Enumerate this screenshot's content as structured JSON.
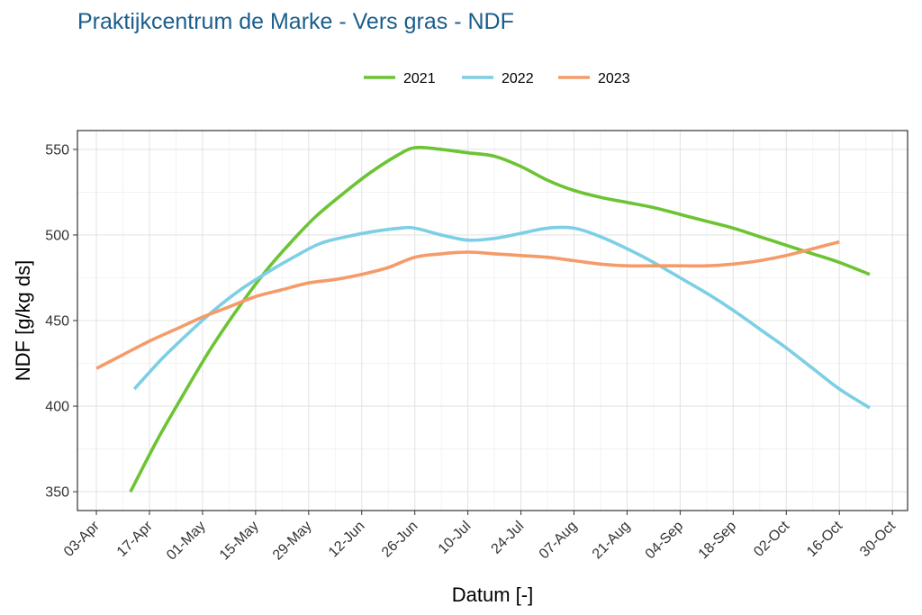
{
  "chart_data": {
    "type": "line",
    "title": "Praktijkcentrum de Marke - Vers gras - NDF",
    "xlabel": "Datum [-]",
    "ylabel": "NDF [g/kg ds]",
    "x_tick_labels": [
      "03-Apr",
      "17-Apr",
      "01-May",
      "15-May",
      "29-May",
      "12-Jun",
      "26-Jun",
      "10-Jul",
      "24-Jul",
      "07-Aug",
      "21-Aug",
      "04-Sep",
      "18-Sep",
      "02-Oct",
      "16-Oct",
      "30-Oct"
    ],
    "y_ticks": [
      350,
      400,
      450,
      500,
      550
    ],
    "xlim": [
      "2023-03-29",
      "2023-11-03"
    ],
    "ylim": [
      339,
      561
    ],
    "grid": true,
    "legend_position": "top",
    "series": [
      {
        "name": "2021",
        "color": "#6cc434",
        "points": [
          [
            "2023-04-12",
            350
          ],
          [
            "2023-04-19",
            380
          ],
          [
            "2023-04-26",
            407
          ],
          [
            "2023-05-03",
            433
          ],
          [
            "2023-05-10",
            456
          ],
          [
            "2023-05-17",
            477
          ],
          [
            "2023-05-24",
            495
          ],
          [
            "2023-05-31",
            511
          ],
          [
            "2023-06-07",
            524
          ],
          [
            "2023-06-14",
            536
          ],
          [
            "2023-06-21",
            546
          ],
          [
            "2023-06-26",
            551
          ],
          [
            "2023-07-03",
            550
          ],
          [
            "2023-07-10",
            548
          ],
          [
            "2023-07-17",
            546
          ],
          [
            "2023-07-24",
            540
          ],
          [
            "2023-07-31",
            532
          ],
          [
            "2023-08-07",
            526
          ],
          [
            "2023-08-14",
            522
          ],
          [
            "2023-08-21",
            519
          ],
          [
            "2023-08-28",
            516
          ],
          [
            "2023-09-04",
            512
          ],
          [
            "2023-09-11",
            508
          ],
          [
            "2023-09-18",
            504
          ],
          [
            "2023-09-25",
            499
          ],
          [
            "2023-10-02",
            494
          ],
          [
            "2023-10-09",
            489
          ],
          [
            "2023-10-16",
            484
          ],
          [
            "2023-10-24",
            477
          ]
        ]
      },
      {
        "name": "2022",
        "color": "#7ccfe4",
        "points": [
          [
            "2023-04-13",
            410
          ],
          [
            "2023-04-20",
            427
          ],
          [
            "2023-04-27",
            442
          ],
          [
            "2023-05-04",
            456
          ],
          [
            "2023-05-11",
            468
          ],
          [
            "2023-05-18",
            478
          ],
          [
            "2023-05-25",
            487
          ],
          [
            "2023-06-01",
            495
          ],
          [
            "2023-06-08",
            499
          ],
          [
            "2023-06-15",
            502
          ],
          [
            "2023-06-22",
            504
          ],
          [
            "2023-06-26",
            504
          ],
          [
            "2023-07-03",
            500
          ],
          [
            "2023-07-10",
            497
          ],
          [
            "2023-07-17",
            498
          ],
          [
            "2023-07-24",
            501
          ],
          [
            "2023-07-31",
            504
          ],
          [
            "2023-08-07",
            504
          ],
          [
            "2023-08-14",
            499
          ],
          [
            "2023-08-21",
            492
          ],
          [
            "2023-08-28",
            484
          ],
          [
            "2023-09-04",
            475
          ],
          [
            "2023-09-11",
            466
          ],
          [
            "2023-09-18",
            456
          ],
          [
            "2023-09-25",
            445
          ],
          [
            "2023-10-02",
            434
          ],
          [
            "2023-10-09",
            422
          ],
          [
            "2023-10-16",
            410
          ],
          [
            "2023-10-24",
            399
          ]
        ]
      },
      {
        "name": "2023",
        "color": "#f59b6a",
        "points": [
          [
            "2023-04-03",
            422
          ],
          [
            "2023-04-10",
            430
          ],
          [
            "2023-04-17",
            438
          ],
          [
            "2023-04-24",
            445
          ],
          [
            "2023-05-01",
            452
          ],
          [
            "2023-05-08",
            458
          ],
          [
            "2023-05-15",
            464
          ],
          [
            "2023-05-22",
            468
          ],
          [
            "2023-05-29",
            472
          ],
          [
            "2023-06-05",
            474
          ],
          [
            "2023-06-12",
            477
          ],
          [
            "2023-06-19",
            481
          ],
          [
            "2023-06-26",
            487
          ],
          [
            "2023-07-03",
            489
          ],
          [
            "2023-07-10",
            490
          ],
          [
            "2023-07-17",
            489
          ],
          [
            "2023-07-24",
            488
          ],
          [
            "2023-07-31",
            487
          ],
          [
            "2023-08-07",
            485
          ],
          [
            "2023-08-14",
            483
          ],
          [
            "2023-08-21",
            482
          ],
          [
            "2023-08-28",
            482
          ],
          [
            "2023-09-04",
            482
          ],
          [
            "2023-09-11",
            482
          ],
          [
            "2023-09-18",
            483
          ],
          [
            "2023-09-25",
            485
          ],
          [
            "2023-10-02",
            488
          ],
          [
            "2023-10-09",
            492
          ],
          [
            "2023-10-16",
            496
          ]
        ]
      }
    ]
  }
}
